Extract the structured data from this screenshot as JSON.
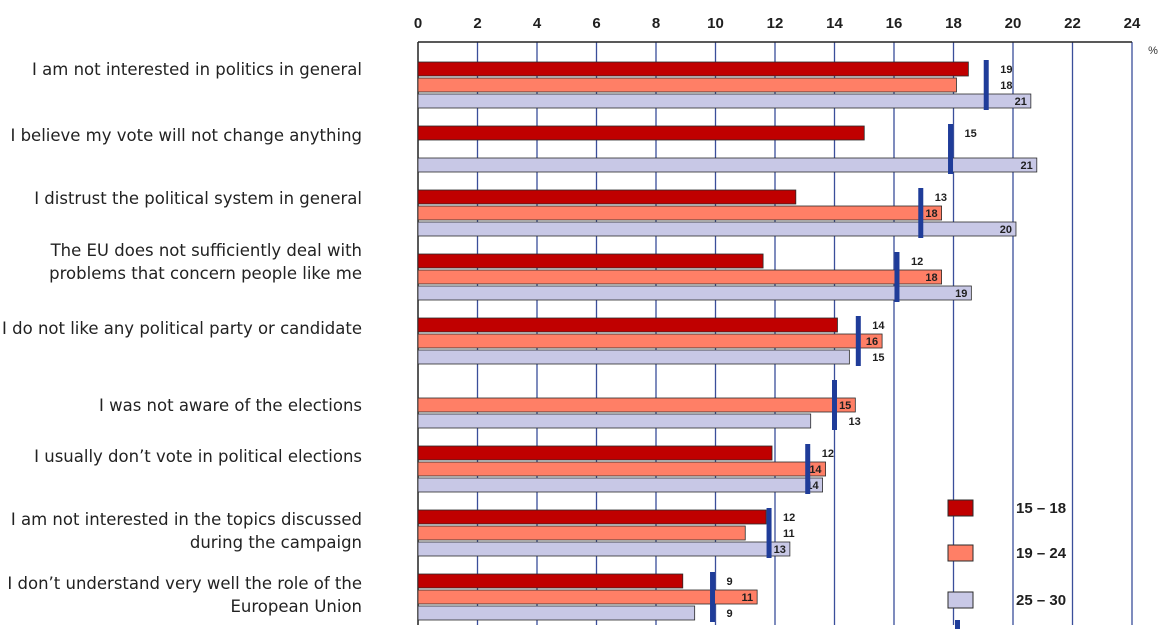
{
  "chart_data": {
    "type": "bar",
    "orientation": "horizontal",
    "unit": "%",
    "xlim": [
      0,
      24
    ],
    "x_ticks": [
      "0",
      "2",
      "4",
      "6",
      "8",
      "10",
      "12",
      "14",
      "16",
      "18",
      "20",
      "22",
      "24"
    ],
    "grid": true,
    "legend_position": "bottom-right",
    "categories": [
      "I am not interested in politics in general",
      "I believe my vote will not change anything",
      "I distrust the political system in general",
      "The EU does not sufficiently deal with problems that concern people like me",
      "I do not like any political party or candidate",
      "I was not aware of the elections",
      "I usually don’t vote in political elections",
      "I am not interested in the topics discussed during the campaign",
      "I don’t understand very well the role of the European Union"
    ],
    "series": [
      {
        "name": "15 – 18",
        "color": "#c00000",
        "values": [
          18.5,
          15,
          12.7,
          11.6,
          14.1,
          null,
          11.9,
          11.7,
          8.9
        ],
        "labels": [
          "19",
          "15",
          "13",
          "12",
          "14",
          null,
          "12",
          "12",
          "9"
        ]
      },
      {
        "name": "19  – 24",
        "color": "#ff7f66",
        "values": [
          18.1,
          null,
          17.6,
          17.6,
          15.6,
          14.7,
          13.7,
          11.0,
          11.4
        ],
        "labels": [
          "18",
          null,
          "18",
          "18",
          "16",
          "15",
          "14",
          "11",
          "11"
        ]
      },
      {
        "name": "25 – 30",
        "color": "#c8c8e6",
        "values": [
          20.6,
          20.8,
          20.1,
          18.6,
          14.5,
          13.2,
          13.6,
          12.5,
          9.3
        ],
        "labels": [
          "21",
          "21",
          "20",
          "19",
          "15",
          "13",
          "14",
          "13",
          "9"
        ]
      }
    ],
    "markers": {
      "color": "#1f3c99",
      "values": [
        19.1,
        17.9,
        16.9,
        16.1,
        14.8,
        14.0,
        13.1,
        11.8,
        9.9
      ]
    }
  }
}
